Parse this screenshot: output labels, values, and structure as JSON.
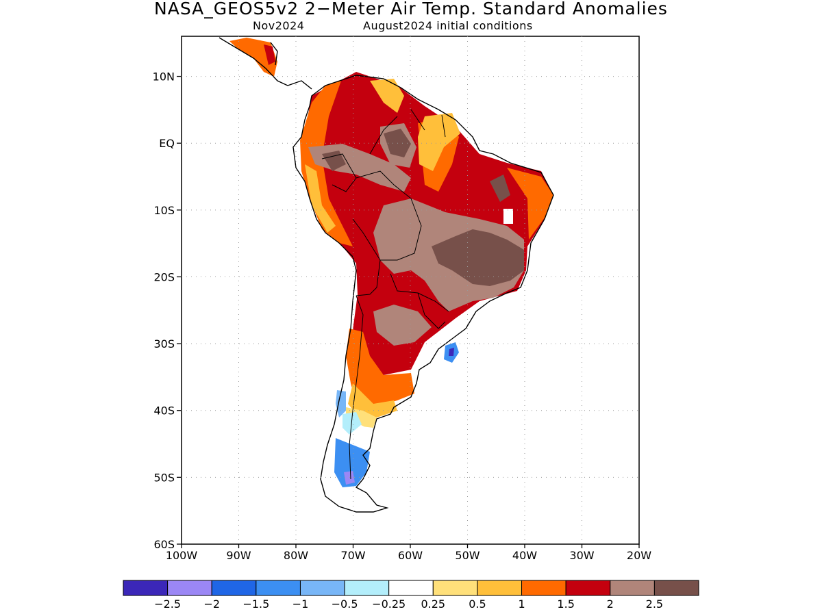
{
  "title": "NASA_GEOS5v2 2−Meter Air Temp. Standard Anomalies",
  "subtitle_left": "Nov2024",
  "subtitle_right": "August2024 initial conditions",
  "map": {
    "lon_range": [
      -100,
      -20
    ],
    "lat_range": [
      -60,
      16
    ],
    "lat_ticks": [
      {
        "value": 10,
        "label": "10N"
      },
      {
        "value": 0,
        "label": "EQ"
      },
      {
        "value": -10,
        "label": "10S"
      },
      {
        "value": -20,
        "label": "20S"
      },
      {
        "value": -30,
        "label": "30S"
      },
      {
        "value": -40,
        "label": "40S"
      },
      {
        "value": -50,
        "label": "50S"
      },
      {
        "value": -60,
        "label": "60S"
      }
    ],
    "lon_ticks": [
      {
        "value": -100,
        "label": "100W"
      },
      {
        "value": -90,
        "label": "90W"
      },
      {
        "value": -80,
        "label": "80W"
      },
      {
        "value": -70,
        "label": "70W"
      },
      {
        "value": -60,
        "label": "60W"
      },
      {
        "value": -50,
        "label": "50W"
      },
      {
        "value": -40,
        "label": "40W"
      },
      {
        "value": -30,
        "label": "30W"
      },
      {
        "value": -20,
        "label": "20W"
      }
    ],
    "grid": "dotted"
  },
  "colorbar": {
    "colors": [
      "#3b27b8",
      "#9b87f5",
      "#1f66e6",
      "#3c8ff2",
      "#78b6f7",
      "#b3eefb",
      "#ffffff",
      "#ffe07a",
      "#ffbf3a",
      "#ff6a00",
      "#c4000e",
      "#b0857a",
      "#77504a"
    ],
    "labels": [
      "−2.5",
      "−2",
      "−1.5",
      "−1",
      "−0.5",
      "−0.25",
      "0.25",
      "0.5",
      "1",
      "1.5",
      "2",
      "2.5"
    ]
  }
}
